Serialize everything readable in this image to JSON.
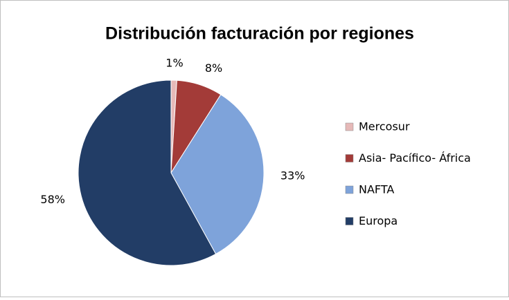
{
  "chart_data": {
    "type": "pie",
    "title": "Distribución facturación por regiones",
    "categories": [
      "Mercosur",
      "Asia- Pacífico- África",
      "NAFTA",
      "Europa"
    ],
    "values": [
      1,
      8,
      33,
      58
    ],
    "value_labels": [
      "1%",
      "8%",
      "33%",
      "58%"
    ],
    "colors": [
      "#e6b9b8",
      "#a33b38",
      "#7ea3da",
      "#223d66"
    ],
    "legend": "right"
  }
}
